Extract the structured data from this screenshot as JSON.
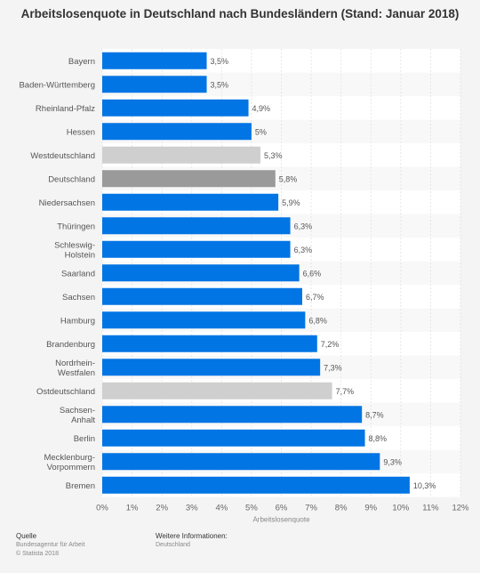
{
  "chart_data": {
    "type": "bar",
    "orientation": "horizontal",
    "title": "Arbeitslosenquote in Deutschland nach Bundesländern (Stand: Januar 2018)",
    "xlabel": "Arbeitslosenquote",
    "xlim": [
      0,
      12
    ],
    "xticks": [
      "0%",
      "1%",
      "2%",
      "3%",
      "4%",
      "5%",
      "6%",
      "7%",
      "8%",
      "9%",
      "10%",
      "11%",
      "12%"
    ],
    "grid": true,
    "categories": [
      [
        "Bayern"
      ],
      [
        "Baden-Württemberg"
      ],
      [
        "Rheinland-Pfalz"
      ],
      [
        "Hessen"
      ],
      [
        "Westdeutschland"
      ],
      [
        "Deutschland"
      ],
      [
        "Niedersachsen"
      ],
      [
        "Thüringen"
      ],
      [
        "Schleswig-",
        "Holstein"
      ],
      [
        "Saarland"
      ],
      [
        "Sachsen"
      ],
      [
        "Hamburg"
      ],
      [
        "Brandenburg"
      ],
      [
        "Nordrhein-",
        "Westfalen"
      ],
      [
        "Ostdeutschland"
      ],
      [
        "Sachsen-",
        "Anhalt"
      ],
      [
        "Berlin"
      ],
      [
        "Mecklenburg-",
        "Vorpommern"
      ],
      [
        "Bremen"
      ]
    ],
    "values": [
      3.5,
      3.5,
      4.9,
      5.0,
      5.3,
      5.8,
      5.9,
      6.3,
      6.3,
      6.6,
      6.7,
      6.8,
      7.2,
      7.3,
      7.7,
      8.7,
      8.8,
      9.3,
      10.3
    ],
    "value_labels": [
      "3,5%",
      "3,5%",
      "4,9%",
      "5%",
      "5,3%",
      "5,8%",
      "5,9%",
      "6,3%",
      "6,3%",
      "6,6%",
      "6,7%",
      "6,8%",
      "7,2%",
      "7,3%",
      "7,7%",
      "8,7%",
      "8,8%",
      "9,3%",
      "10,3%"
    ],
    "bar_colors": [
      "#0275e4",
      "#0275e4",
      "#0275e4",
      "#0275e4",
      "#cfcfcf",
      "#9a9a9a",
      "#0275e4",
      "#0275e4",
      "#0275e4",
      "#0275e4",
      "#0275e4",
      "#0275e4",
      "#0275e4",
      "#0275e4",
      "#cfcfcf",
      "#0275e4",
      "#0275e4",
      "#0275e4",
      "#0275e4"
    ]
  },
  "footer": {
    "source_heading": "Quelle",
    "source_line1": "Bundesagentur für Arbeit",
    "source_line2": "© Statista 2018",
    "info_heading": "Weitere Informationen:",
    "info_line1": "Deutschland"
  }
}
